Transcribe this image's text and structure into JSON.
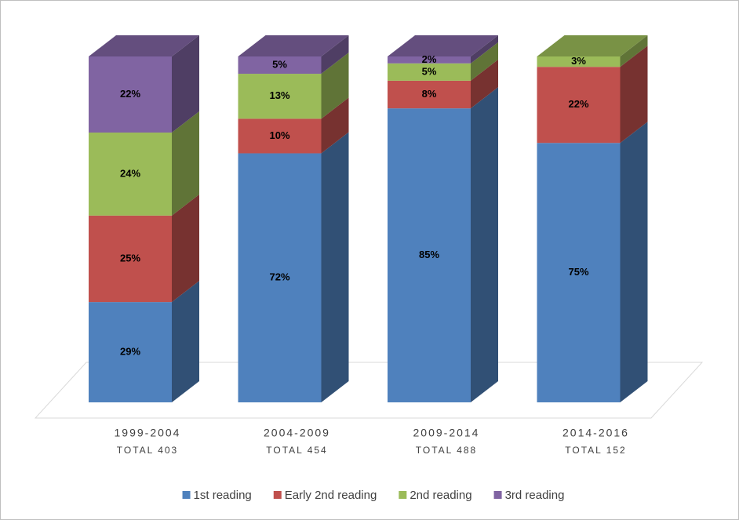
{
  "chart_data": {
    "type": "bar3d_stacked",
    "categories": [
      "1999-2004",
      "2004-2009",
      "2009-2014",
      "2014-2016"
    ],
    "category_totals": [
      "TOTAL 403",
      "TOTAL 454",
      "TOTAL 488",
      "TOTAL 152"
    ],
    "series": [
      {
        "name": "1st reading",
        "color": "#4f81bd",
        "values": [
          29,
          72,
          85,
          75
        ],
        "value_labels": [
          "29%",
          "72%",
          "85%",
          "75%"
        ]
      },
      {
        "name": "Early 2nd reading",
        "color": "#c0504d",
        "values": [
          25,
          10,
          8,
          22
        ],
        "value_labels": [
          "25%",
          "10%",
          "8%",
          "22%"
        ]
      },
      {
        "name": "2nd reading",
        "color": "#9bbb59",
        "values": [
          24,
          13,
          5,
          3
        ],
        "value_labels": [
          "24%",
          "13%",
          "5%",
          "3%"
        ]
      },
      {
        "name": "3rd reading",
        "color": "#8064a2",
        "values": [
          22,
          5,
          2,
          0
        ],
        "value_labels": [
          "22%",
          "5%",
          "2%",
          null
        ]
      }
    ],
    "legend": "bottom"
  }
}
